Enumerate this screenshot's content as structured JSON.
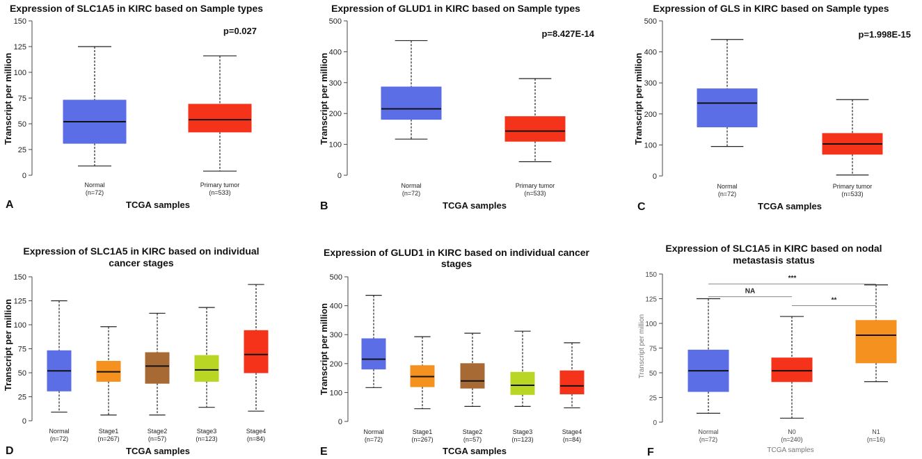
{
  "figure": {
    "colors": {
      "blue": "#5b6ee6",
      "red": "#f5331b",
      "orange": "#f4911f",
      "brown": "#a86a34",
      "lime": "#b8d623",
      "line": "#222222",
      "text": "#111111",
      "sig": "#888888"
    }
  },
  "chart_data": [
    {
      "panel": "A",
      "type": "boxplot",
      "title": [
        "Expression of SLC1A5 in KIRC based on Sample types"
      ],
      "xlabel": "TCGA samples",
      "ylabel": "Transcript per million",
      "ylim": [
        0,
        150
      ],
      "yticks": [
        0,
        25,
        50,
        75,
        100,
        125,
        150
      ],
      "pvalue": "p=0.027",
      "groups": [
        {
          "name": "Normal",
          "n": "(n=72)",
          "min": 9,
          "q1": 31,
          "median": 52,
          "q3": 73,
          "max": 125,
          "color": "blue"
        },
        {
          "name": "Primary tumor",
          "n": "(n=533)",
          "min": 4,
          "q1": 42,
          "median": 54,
          "q3": 69,
          "max": 116,
          "color": "red"
        }
      ]
    },
    {
      "panel": "B",
      "type": "boxplot",
      "title": [
        "Expression of GLUD1 in KIRC based on Sample types"
      ],
      "xlabel": "TCGA samples",
      "ylabel": "Transcript per million",
      "ylim": [
        0,
        500
      ],
      "yticks": [
        0,
        100,
        200,
        300,
        400,
        500
      ],
      "pvalue": "p=8.427E-14",
      "groups": [
        {
          "name": "Normal",
          "n": "(n=72)",
          "min": 117,
          "q1": 181,
          "median": 215,
          "q3": 286,
          "max": 436,
          "color": "blue"
        },
        {
          "name": "Primary tumor",
          "n": "(n=533)",
          "min": 44,
          "q1": 110,
          "median": 143,
          "q3": 190,
          "max": 313,
          "color": "red"
        }
      ]
    },
    {
      "panel": "C",
      "type": "boxplot",
      "title": [
        "Expression of GLS in KIRC based on Sample types"
      ],
      "xlabel": "TCGA samples",
      "ylabel": "Transcript per million",
      "ylim": [
        0,
        500
      ],
      "yticks": [
        0,
        100,
        200,
        300,
        400,
        500
      ],
      "pvalue": "p=1.998E-15",
      "groups": [
        {
          "name": "Normal",
          "n": "(n=72)",
          "min": 95,
          "q1": 158,
          "median": 235,
          "q3": 281,
          "max": 440,
          "color": "blue"
        },
        {
          "name": "Primary tumor",
          "n": "(n=533)",
          "min": 3,
          "q1": 70,
          "median": 103,
          "q3": 137,
          "max": 246,
          "color": "red"
        }
      ]
    },
    {
      "panel": "D",
      "type": "boxplot",
      "title": [
        "Expression of SLC1A5 in KIRC based on individual",
        "cancer stages"
      ],
      "xlabel": "TCGA samples",
      "ylabel": "Transcript per million",
      "ylim": [
        0,
        150
      ],
      "yticks": [
        0,
        25,
        50,
        75,
        100,
        125,
        150
      ],
      "groups": [
        {
          "name": "Normal",
          "n": "(n=72)",
          "min": 9,
          "q1": 31,
          "median": 52,
          "q3": 73,
          "max": 125,
          "color": "blue"
        },
        {
          "name": "Stage1",
          "n": "(n=267)",
          "min": 6,
          "q1": 41,
          "median": 51,
          "q3": 62,
          "max": 98,
          "color": "orange"
        },
        {
          "name": "Stage2",
          "n": "(n=57)",
          "min": 6,
          "q1": 39,
          "median": 57,
          "q3": 71,
          "max": 112,
          "color": "brown"
        },
        {
          "name": "Stage3",
          "n": "(n=123)",
          "min": 14,
          "q1": 41,
          "median": 53,
          "q3": 68,
          "max": 118,
          "color": "lime"
        },
        {
          "name": "Stage4",
          "n": "(n=84)",
          "min": 10,
          "q1": 50,
          "median": 69,
          "q3": 94,
          "max": 142,
          "color": "red"
        }
      ]
    },
    {
      "panel": "E",
      "type": "boxplot",
      "title": [
        "Expression of GLUD1 in KIRC based on individual cancer",
        "stages"
      ],
      "xlabel": "TCGA samples",
      "ylabel": "Transcript per million",
      "ylim": [
        0,
        500
      ],
      "yticks": [
        0,
        100,
        200,
        300,
        400,
        500
      ],
      "groups": [
        {
          "name": "Normal",
          "n": "(n=72)",
          "min": 117,
          "q1": 181,
          "median": 215,
          "q3": 286,
          "max": 436,
          "color": "blue"
        },
        {
          "name": "Stage1",
          "n": "(n=267)",
          "min": 44,
          "q1": 120,
          "median": 155,
          "q3": 193,
          "max": 293,
          "color": "orange"
        },
        {
          "name": "Stage2",
          "n": "(n=57)",
          "min": 52,
          "q1": 115,
          "median": 140,
          "q3": 200,
          "max": 305,
          "color": "brown"
        },
        {
          "name": "Stage3",
          "n": "(n=123)",
          "min": 52,
          "q1": 93,
          "median": 125,
          "q3": 170,
          "max": 312,
          "color": "lime"
        },
        {
          "name": "Stage4",
          "n": "(n=84)",
          "min": 47,
          "q1": 95,
          "median": 123,
          "q3": 175,
          "max": 272,
          "color": "red"
        }
      ]
    },
    {
      "panel": "F",
      "type": "boxplot",
      "title": [
        "Expression of SLC1A5 in KIRC based on nodal",
        "metastasis status"
      ],
      "xlabel": "TCGA samples",
      "ylabel": "Transcript per million",
      "ylim": [
        0,
        150
      ],
      "yticks": [
        0,
        25,
        50,
        75,
        100,
        125,
        150
      ],
      "groups": [
        {
          "name": "Normal",
          "n": "(n=72)",
          "min": 9,
          "q1": 31,
          "median": 52,
          "q3": 73,
          "max": 125,
          "color": "blue"
        },
        {
          "name": "N0",
          "n": "(n=240)",
          "min": 4,
          "q1": 41,
          "median": 52,
          "q3": 65,
          "max": 107,
          "color": "red"
        },
        {
          "name": "N1",
          "n": "(n=16)",
          "min": 41,
          "q1": 60,
          "median": 88,
          "q3": 103,
          "max": 139,
          "color": "orange"
        }
      ],
      "significance": [
        {
          "label": "NA",
          "from": 0,
          "to": 1,
          "level": 127
        },
        {
          "label": "**",
          "from": 1,
          "to": 2,
          "level": 118
        },
        {
          "label": "***",
          "from": 0,
          "to": 2,
          "level": 140
        }
      ]
    }
  ]
}
